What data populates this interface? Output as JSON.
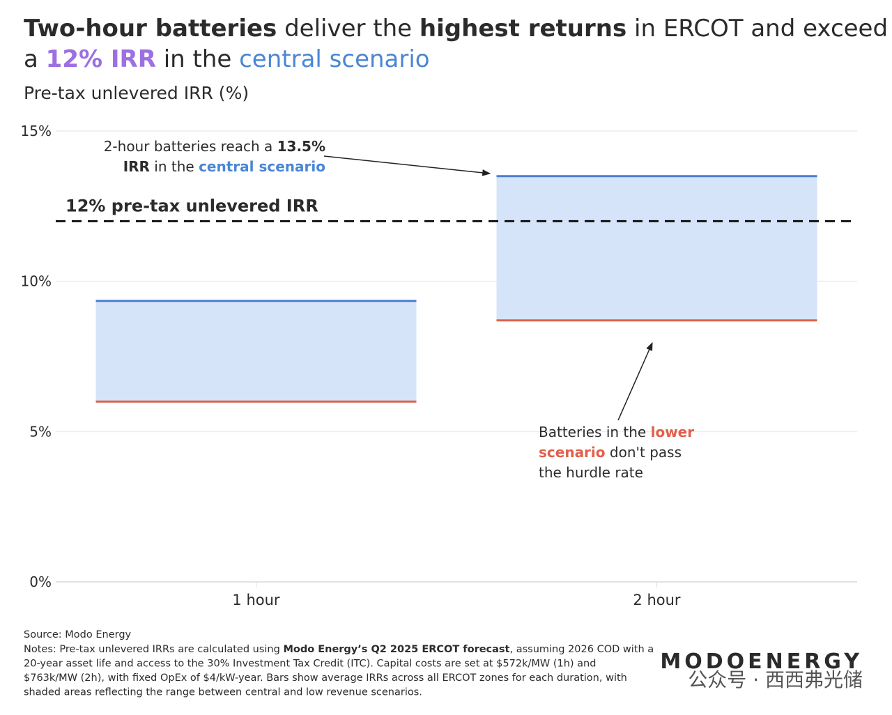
{
  "chart_data": {
    "type": "range-bar",
    "title": [
      [
        {
          "text": "Two-hour batteries",
          "bold": true
        },
        {
          "text": " deliver the "
        },
        {
          "text": "highest returns",
          "bold": true
        },
        {
          "text": " in ERCOT and exceed"
        }
      ],
      [
        {
          "text": "a "
        },
        {
          "text": "12% IRR",
          "bold": true,
          "color": "#9d6fe2"
        },
        {
          "text": " in the "
        },
        {
          "text": "central scenario",
          "color": "#4a86d4"
        }
      ]
    ],
    "y_label": "Pre-tax unlevered IRR (%)",
    "categories": [
      "1 hour",
      "2 hour"
    ],
    "series": [
      {
        "color": "#4a7fd0",
        "values": [
          9.35,
          13.5
        ]
      },
      {
        "color": "#e0604a",
        "values": [
          6.0,
          8.7
        ]
      }
    ],
    "range_fill": "#d6e4f9",
    "ylim": [
      0,
      15
    ],
    "yticks": [
      {
        "value": 0,
        "label": "0%"
      },
      {
        "value": 5,
        "label": "5%"
      },
      {
        "value": 10,
        "label": "10%"
      },
      {
        "value": 15,
        "label": "15%"
      }
    ],
    "grid": true,
    "hurdle": {
      "value": 12,
      "label": "12% pre-tax unlevered IRR",
      "color": "#9d6fe2"
    },
    "annotations": [
      [
        [
          {
            "text": "2-hour batteries reach a "
          },
          {
            "text": "13.5%",
            "bold": true
          }
        ],
        [
          {
            "text": "IRR",
            "bold": true
          },
          {
            "text": " in the "
          },
          {
            "text": "central scenario",
            "bold": true,
            "color": "#4a86d4"
          }
        ]
      ],
      [
        [
          {
            "text": "Batteries in the "
          },
          {
            "text": "lower",
            "bold": true,
            "color": "#e0604a"
          }
        ],
        [
          {
            "text": "scenario",
            "bold": true,
            "color": "#e0604a"
          },
          {
            "text": " don't pass"
          }
        ],
        [
          {
            "text": "the hurdle rate"
          }
        ]
      ]
    ],
    "source": "Source: Modo Energy",
    "notes": [
      [
        {
          "text": "Notes: Pre-tax unlevered IRRs are calculated using "
        },
        {
          "text": "Modo Energy’s Q2 2025 ERCOT forecast",
          "bold": true
        },
        {
          "text": ", assuming 2026 COD with a"
        }
      ],
      [
        {
          "text": "20-year asset life and access to the 30% Investment Tax Credit (ITC). Capital costs are set at $572k/MW (1h) and"
        }
      ],
      [
        {
          "text": "$763k/MW (2h), with fixed OpEx of $4/kW-year. Bars show average IRRs across all ERCOT zones for each duration, with"
        }
      ],
      [
        {
          "text": "shaded areas reflecting the range between central and low revenue scenarios."
        }
      ]
    ],
    "logo": "MODOENERGY",
    "watermark": "公众号 · 西西弗光储"
  }
}
